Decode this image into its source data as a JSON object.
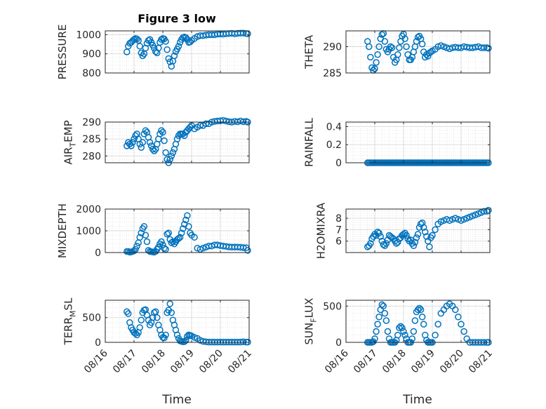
{
  "figure": {
    "title": "Figure 3 low",
    "xlabel": "Time"
  },
  "style": {
    "marker_color": "#0072BD",
    "axis_color": "#262626",
    "grid_color": "#d9d9d9"
  },
  "chart_data": [
    {
      "type": "scatter",
      "ylabel": "PRESSURE",
      "ylabel_sub": "",
      "ylabel_tail": "",
      "xlim": [
        0,
        5
      ],
      "ylim": [
        800,
        1020
      ],
      "yticks": [
        800,
        900,
        1000
      ],
      "yticklabels": [
        "800",
        "900",
        "1000"
      ],
      "xticklabels": [],
      "grid": true,
      "x": [
        0.75,
        0.8,
        0.85,
        0.9,
        0.95,
        1.0,
        1.05,
        1.1,
        1.15,
        1.2,
        1.25,
        1.3,
        1.35,
        1.4,
        1.45,
        1.5,
        1.55,
        1.6,
        1.65,
        1.7,
        1.75,
        1.8,
        1.85,
        1.9,
        1.95,
        2.0,
        2.05,
        2.1,
        2.15,
        2.2,
        2.25,
        2.3,
        2.35,
        2.4,
        2.45,
        2.5,
        2.55,
        2.6,
        2.65,
        2.7,
        2.75,
        2.8,
        2.85,
        2.9,
        2.95,
        3.0,
        3.1,
        3.2,
        3.3,
        3.4,
        3.5,
        3.6,
        3.7,
        3.8,
        3.9,
        4.0,
        4.1,
        4.2,
        4.3,
        4.4,
        4.5,
        4.6,
        4.7,
        4.8,
        4.9,
        4.95
      ],
      "y": [
        910,
        940,
        955,
        960,
        968,
        975,
        980,
        978,
        970,
        940,
        905,
        890,
        900,
        930,
        955,
        970,
        975,
        960,
        945,
        930,
        912,
        905,
        930,
        960,
        975,
        980,
        978,
        965,
        922,
        875,
        858,
        835,
        862,
        890,
        912,
        925,
        940,
        960,
        975,
        985,
        988,
        985,
        975,
        960,
        962,
        970,
        980,
        990,
        995,
        995,
        998,
        1000,
        1000,
        1000,
        1003,
        1004,
        1003,
        1005,
        1006,
        1007,
        1005,
        1007,
        1008,
        1008,
        1006,
        1005
      ]
    },
    {
      "type": "scatter",
      "ylabel": "THETA",
      "ylabel_sub": "",
      "ylabel_tail": "",
      "xlim": [
        0,
        5
      ],
      "ylim": [
        285,
        293
      ],
      "yticks": [
        285,
        290
      ],
      "yticklabels": [
        "285",
        "290"
      ],
      "xticklabels": [],
      "grid": true,
      "x": [
        0.75,
        0.8,
        0.85,
        0.9,
        0.95,
        1.0,
        1.05,
        1.1,
        1.15,
        1.2,
        1.25,
        1.3,
        1.35,
        1.4,
        1.45,
        1.5,
        1.55,
        1.6,
        1.65,
        1.7,
        1.75,
        1.8,
        1.85,
        1.9,
        1.95,
        2.0,
        2.05,
        2.1,
        2.15,
        2.2,
        2.25,
        2.3,
        2.35,
        2.4,
        2.45,
        2.5,
        2.55,
        2.6,
        2.65,
        2.7,
        2.75,
        2.8,
        2.85,
        2.9,
        2.95,
        3.0,
        3.1,
        3.2,
        3.3,
        3.4,
        3.5,
        3.6,
        3.7,
        3.8,
        3.9,
        4.0,
        4.1,
        4.2,
        4.3,
        4.4,
        4.5,
        4.6,
        4.7,
        4.8,
        4.9,
        4.95
      ],
      "y": [
        291,
        290,
        288,
        286,
        285.5,
        285.8,
        287,
        288.5,
        290,
        291.5,
        292.3,
        292.5,
        291,
        289.5,
        289,
        289.5,
        290,
        289.8,
        288,
        287,
        287.5,
        288.5,
        289.8,
        291,
        292,
        292.4,
        291.5,
        290,
        288.5,
        287.5,
        287.5,
        288,
        289,
        290,
        291,
        291.8,
        292,
        291.5,
        290.5,
        289,
        288,
        288.5,
        288.2,
        288.8,
        289,
        289.2,
        289.5,
        290,
        290.2,
        290,
        289.8,
        289.6,
        289.8,
        289.9,
        289.8,
        289.8,
        290,
        289.9,
        289.8,
        289.8,
        289.9,
        290,
        289.8,
        289.8,
        289.8,
        289.7
      ]
    },
    {
      "type": "scatter",
      "ylabel": "AIR",
      "ylabel_sub": "T",
      "ylabel_tail": "EMP",
      "xlim": [
        0,
        5
      ],
      "ylim": [
        278,
        290
      ],
      "yticks": [
        280,
        285,
        290
      ],
      "yticklabels": [
        "280",
        "285",
        "290"
      ],
      "xticklabels": [],
      "grid": true,
      "x": [
        0.75,
        0.8,
        0.85,
        0.9,
        0.95,
        1.0,
        1.05,
        1.1,
        1.15,
        1.2,
        1.25,
        1.3,
        1.35,
        1.4,
        1.45,
        1.5,
        1.55,
        1.6,
        1.65,
        1.7,
        1.75,
        1.8,
        1.85,
        1.9,
        1.95,
        2.0,
        2.05,
        2.1,
        2.15,
        2.2,
        2.25,
        2.3,
        2.35,
        2.4,
        2.45,
        2.5,
        2.55,
        2.6,
        2.65,
        2.7,
        2.75,
        2.8,
        2.85,
        2.9,
        2.95,
        3.0,
        3.1,
        3.2,
        3.3,
        3.4,
        3.5,
        3.6,
        3.7,
        3.8,
        3.9,
        4.0,
        4.1,
        4.2,
        4.3,
        4.4,
        4.5,
        4.6,
        4.7,
        4.8,
        4.9,
        4.95
      ],
      "y": [
        283,
        284,
        283.5,
        283,
        284,
        285,
        286,
        286.5,
        285,
        283.5,
        282.5,
        284,
        286.5,
        287.5,
        287,
        285.5,
        284,
        283,
        282,
        281.5,
        282,
        283.5,
        285,
        286.5,
        287.5,
        287,
        284.5,
        281,
        279,
        278,
        279,
        280,
        281,
        282,
        283.5,
        285,
        286,
        286.5,
        286.5,
        286.5,
        286,
        287,
        287.5,
        288,
        288.5,
        289,
        288,
        288.5,
        289,
        289,
        289.5,
        289.5,
        290,
        290.2,
        290.3,
        290.4,
        290.5,
        290.3,
        290.1,
        290.0,
        290.2,
        290.1,
        290.3,
        290.1,
        290.2,
        290.0
      ]
    },
    {
      "type": "scatter",
      "ylabel": "RAINFALL",
      "ylabel_sub": "",
      "ylabel_tail": "",
      "xlim": [
        0,
        5
      ],
      "ylim": [
        0,
        0.45
      ],
      "yticks": [
        0,
        0.2,
        0.4
      ],
      "yticklabels": [
        "0",
        "0.2",
        "0.4"
      ],
      "xticklabels": [],
      "grid": true,
      "x": [
        0.75,
        0.8,
        0.85,
        0.9,
        0.95,
        1.0,
        1.05,
        1.1,
        1.15,
        1.2,
        1.25,
        1.3,
        1.35,
        1.4,
        1.45,
        1.5,
        1.55,
        1.6,
        1.65,
        1.7,
        1.75,
        1.8,
        1.85,
        1.9,
        1.95,
        2.0,
        2.05,
        2.1,
        2.15,
        2.2,
        2.25,
        2.3,
        2.35,
        2.4,
        2.45,
        2.5,
        2.55,
        2.6,
        2.65,
        2.7,
        2.75,
        2.8,
        2.85,
        2.9,
        2.95,
        3.0,
        3.05,
        3.1,
        3.15,
        3.2,
        3.25,
        3.3,
        3.35,
        3.4,
        3.45,
        3.5,
        3.55,
        3.6,
        3.65,
        3.7,
        3.75,
        3.8,
        3.85,
        3.9,
        3.95,
        4.0,
        4.05,
        4.1,
        4.15,
        4.2,
        4.25,
        4.3,
        4.35,
        4.4,
        4.45,
        4.5,
        4.55,
        4.6,
        4.65,
        4.7,
        4.75,
        4.8,
        4.85,
        4.9,
        4.95
      ],
      "y": [
        0,
        0,
        0,
        0,
        0,
        0,
        0,
        0,
        0,
        0,
        0,
        0,
        0,
        0,
        0,
        0,
        0,
        0,
        0,
        0,
        0,
        0,
        0,
        0,
        0,
        0,
        0,
        0,
        0,
        0,
        0,
        0,
        0,
        0,
        0,
        0,
        0,
        0,
        0,
        0,
        0,
        0,
        0,
        0,
        0,
        0,
        0,
        0,
        0,
        0,
        0,
        0,
        0,
        0,
        0,
        0,
        0,
        0,
        0,
        0,
        0,
        0,
        0,
        0,
        0,
        0,
        0,
        0,
        0,
        0,
        0,
        0,
        0,
        0,
        0,
        0,
        0,
        0,
        0,
        0,
        0,
        0,
        0,
        0,
        0
      ]
    },
    {
      "type": "scatter",
      "ylabel": "MIXDEPTH",
      "ylabel_sub": "",
      "ylabel_tail": "",
      "xlim": [
        0,
        5
      ],
      "ylim": [
        0,
        2000
      ],
      "yticks": [
        0,
        1000,
        2000
      ],
      "yticklabels": [
        "0",
        "1000",
        "2000"
      ],
      "xticklabels": [],
      "grid": true,
      "x": [
        0.75,
        0.8,
        0.85,
        0.9,
        0.95,
        1.0,
        1.05,
        1.1,
        1.15,
        1.2,
        1.25,
        1.3,
        1.35,
        1.4,
        1.45,
        1.5,
        1.55,
        1.6,
        1.65,
        1.7,
        1.75,
        1.8,
        1.85,
        1.9,
        1.95,
        2.0,
        2.05,
        2.1,
        2.15,
        2.2,
        2.25,
        2.3,
        2.35,
        2.4,
        2.45,
        2.5,
        2.55,
        2.6,
        2.65,
        2.7,
        2.75,
        2.8,
        2.85,
        2.9,
        2.95,
        3.0,
        3.1,
        3.2,
        3.3,
        3.4,
        3.5,
        3.6,
        3.7,
        3.8,
        3.9,
        4.0,
        4.1,
        4.2,
        4.3,
        4.4,
        4.5,
        4.6,
        4.7,
        4.8,
        4.9,
        4.95
      ],
      "y": [
        50,
        50,
        20,
        30,
        50,
        80,
        150,
        300,
        450,
        700,
        900,
        1100,
        1200,
        800,
        500,
        100,
        50,
        40,
        30,
        20,
        50,
        150,
        250,
        400,
        500,
        350,
        200,
        150,
        850,
        900,
        600,
        450,
        500,
        400,
        500,
        600,
        650,
        700,
        900,
        1100,
        1300,
        1500,
        1700,
        1200,
        900,
        800,
        700,
        200,
        150,
        200,
        250,
        300,
        300,
        350,
        350,
        320,
        300,
        280,
        260,
        250,
        250,
        250,
        240,
        230,
        220,
        100
      ]
    },
    {
      "type": "scatter",
      "ylabel": "H2OMIXRA",
      "ylabel_sub": "",
      "ylabel_tail": "",
      "xlim": [
        0,
        5
      ],
      "ylim": [
        5,
        8.8
      ],
      "yticks": [
        6,
        7,
        8
      ],
      "yticklabels": [
        "6",
        "7",
        "8"
      ],
      "xticklabels": [],
      "grid": true,
      "x": [
        0.75,
        0.8,
        0.85,
        0.9,
        0.95,
        1.0,
        1.05,
        1.1,
        1.15,
        1.2,
        1.25,
        1.3,
        1.35,
        1.4,
        1.45,
        1.5,
        1.55,
        1.6,
        1.65,
        1.7,
        1.75,
        1.8,
        1.85,
        1.9,
        1.95,
        2.0,
        2.05,
        2.1,
        2.15,
        2.2,
        2.25,
        2.3,
        2.35,
        2.4,
        2.45,
        2.5,
        2.55,
        2.6,
        2.65,
        2.7,
        2.75,
        2.8,
        2.85,
        2.9,
        2.95,
        3.0,
        3.1,
        3.2,
        3.3,
        3.4,
        3.5,
        3.6,
        3.7,
        3.8,
        3.9,
        4.0,
        4.1,
        4.2,
        4.3,
        4.4,
        4.5,
        4.6,
        4.7,
        4.8,
        4.9,
        4.95
      ],
      "y": [
        5.5,
        5.6,
        5.8,
        6.2,
        6.4,
        6.6,
        6.5,
        6.8,
        6.7,
        6.4,
        6.0,
        5.7,
        5.6,
        5.8,
        6.1,
        6.5,
        6.4,
        6.3,
        6.2,
        6.0,
        5.8,
        5.9,
        6.2,
        6.3,
        6.5,
        6.6,
        6.7,
        6.5,
        6.2,
        6.0,
        6.1,
        5.8,
        5.6,
        5.9,
        6.3,
        6.6,
        7.2,
        7.5,
        7.6,
        7.2,
        6.8,
        6.4,
        6.0,
        5.5,
        6.3,
        6.5,
        7.0,
        7.5,
        7.7,
        7.8,
        7.9,
        7.8,
        7.9,
        8.0,
        7.9,
        7.8,
        7.9,
        8.0,
        8.1,
        8.2,
        8.3,
        8.4,
        8.5,
        8.6,
        8.6,
        8.7
      ]
    },
    {
      "type": "scatter",
      "ylabel": "TERR",
      "ylabel_sub": "M",
      "ylabel_tail": "SL",
      "xlim": [
        0,
        5
      ],
      "ylim": [
        0,
        850
      ],
      "yticks": [
        0,
        500
      ],
      "yticklabels": [
        "0",
        "500"
      ],
      "xticklabels": [
        "08/16",
        "08/17",
        "08/18",
        "08/19",
        "08/20",
        "08/21"
      ],
      "grid": true,
      "x": [
        0.75,
        0.8,
        0.85,
        0.9,
        0.95,
        1.0,
        1.05,
        1.1,
        1.15,
        1.2,
        1.25,
        1.3,
        1.35,
        1.4,
        1.45,
        1.5,
        1.55,
        1.6,
        1.65,
        1.7,
        1.75,
        1.8,
        1.85,
        1.9,
        1.95,
        2.0,
        2.05,
        2.1,
        2.15,
        2.2,
        2.25,
        2.3,
        2.35,
        2.4,
        2.45,
        2.5,
        2.55,
        2.6,
        2.65,
        2.7,
        2.75,
        2.8,
        2.85,
        2.9,
        2.95,
        3.0,
        3.1,
        3.2,
        3.3,
        3.4,
        3.5,
        3.6,
        3.7,
        3.8,
        3.9,
        4.0,
        4.1,
        4.2,
        4.3,
        4.4,
        4.5,
        4.6,
        4.7,
        4.8,
        4.9,
        4.95
      ],
      "y": [
        620,
        580,
        400,
        300,
        250,
        200,
        180,
        150,
        200,
        300,
        450,
        600,
        650,
        660,
        550,
        450,
        350,
        400,
        500,
        600,
        620,
        500,
        350,
        250,
        150,
        100,
        90,
        150,
        600,
        650,
        780,
        600,
        450,
        350,
        250,
        150,
        80,
        30,
        20,
        10,
        15,
        40,
        120,
        150,
        140,
        130,
        100,
        80,
        40,
        20,
        10,
        5,
        5,
        5,
        5,
        5,
        5,
        5,
        5,
        5,
        5,
        5,
        5,
        10,
        5,
        5
      ]
    },
    {
      "type": "scatter",
      "ylabel": "SUN",
      "ylabel_sub": "F",
      "ylabel_tail": "LUX",
      "xlim": [
        0,
        5
      ],
      "ylim": [
        0,
        580
      ],
      "yticks": [
        0,
        500
      ],
      "yticklabels": [
        "0",
        "500"
      ],
      "xticklabels": [
        "08/16",
        "08/17",
        "08/18",
        "08/19",
        "08/20",
        "08/21"
      ],
      "grid": true,
      "x": [
        0.75,
        0.8,
        0.85,
        0.9,
        0.95,
        1.0,
        1.05,
        1.1,
        1.15,
        1.2,
        1.25,
        1.3,
        1.35,
        1.4,
        1.45,
        1.5,
        1.55,
        1.6,
        1.65,
        1.7,
        1.75,
        1.8,
        1.85,
        1.9,
        1.95,
        2.0,
        2.05,
        2.1,
        2.15,
        2.2,
        2.25,
        2.3,
        2.35,
        2.4,
        2.45,
        2.5,
        2.55,
        2.6,
        2.65,
        2.7,
        2.75,
        2.8,
        2.85,
        2.9,
        2.95,
        3.0,
        3.1,
        3.2,
        3.3,
        3.4,
        3.5,
        3.6,
        3.7,
        3.8,
        3.9,
        4.0,
        4.1,
        4.2,
        4.3,
        4.4,
        4.5,
        4.6,
        4.7,
        4.8,
        4.9,
        4.95
      ],
      "y": [
        0,
        0,
        0,
        0,
        10,
        50,
        150,
        250,
        350,
        450,
        520,
        500,
        400,
        300,
        150,
        50,
        0,
        0,
        0,
        0,
        30,
        100,
        200,
        220,
        200,
        150,
        100,
        50,
        0,
        0,
        0,
        50,
        150,
        300,
        420,
        450,
        470,
        450,
        350,
        250,
        100,
        30,
        0,
        0,
        0,
        0,
        100,
        250,
        400,
        450,
        500,
        530,
        500,
        450,
        350,
        250,
        150,
        50,
        0,
        0,
        0,
        0,
        0,
        0,
        0,
        0
      ]
    }
  ]
}
